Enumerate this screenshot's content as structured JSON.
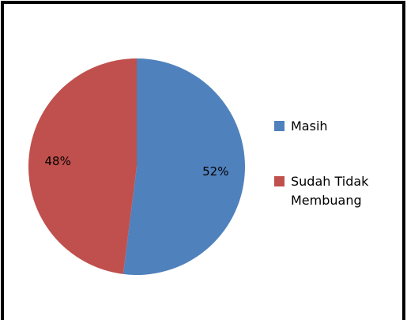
{
  "chart_data": {
    "type": "pie",
    "categories": [
      "Masih",
      "Sudah Tidak Membuang"
    ],
    "values": [
      52,
      48
    ],
    "value_labels": [
      "52%",
      "48%"
    ],
    "colors": [
      "#4f81bd",
      "#c0504d"
    ],
    "legend": "right"
  }
}
